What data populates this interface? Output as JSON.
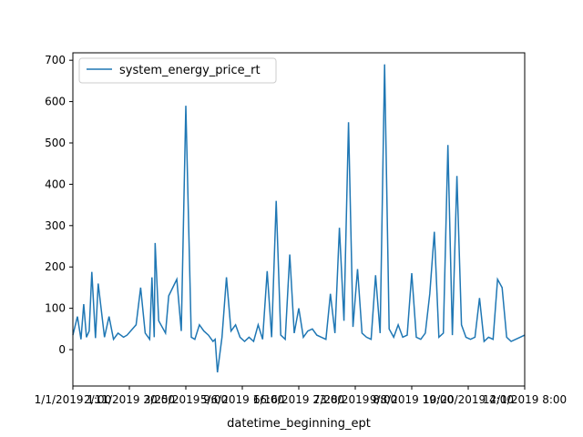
{
  "chart_data": {
    "type": "line",
    "title": "",
    "xlabel": "datetime_beginning_ept",
    "ylabel": "",
    "ylim": [
      -88,
      718
    ],
    "y_ticks": [
      0,
      100,
      200,
      300,
      400,
      500,
      600,
      700
    ],
    "x_tick_labels": [
      "1/1/2019 1:00",
      "2/11/2019 20:00",
      "3/25/2019 9:00",
      "5/6/2019 16:00",
      "6/16/2019 23:00",
      "7/28/2019 8:00",
      "9/8/2019 19:00",
      "10/20/2019 4:00",
      "12/1/2019 8:00"
    ],
    "legend": {
      "position": "upper left"
    },
    "colors": {
      "series": "#1f77b4"
    },
    "series": [
      {
        "name": "system_energy_price_rt",
        "x_range": [
          0,
          1
        ],
        "x": [
          0.0,
          0.01,
          0.018,
          0.024,
          0.03,
          0.036,
          0.042,
          0.05,
          0.056,
          0.07,
          0.08,
          0.09,
          0.1,
          0.112,
          0.12,
          0.14,
          0.15,
          0.16,
          0.17,
          0.175,
          0.18,
          0.182,
          0.19,
          0.205,
          0.212,
          0.23,
          0.24,
          0.25,
          0.262,
          0.27,
          0.28,
          0.29,
          0.3,
          0.31,
          0.315,
          0.32,
          0.33,
          0.34,
          0.35,
          0.36,
          0.37,
          0.38,
          0.39,
          0.4,
          0.41,
          0.42,
          0.43,
          0.44,
          0.45,
          0.46,
          0.47,
          0.48,
          0.49,
          0.5,
          0.51,
          0.52,
          0.53,
          0.54,
          0.55,
          0.56,
          0.57,
          0.58,
          0.59,
          0.6,
          0.61,
          0.62,
          0.63,
          0.64,
          0.65,
          0.66,
          0.67,
          0.68,
          0.69,
          0.7,
          0.71,
          0.72,
          0.73,
          0.74,
          0.75,
          0.76,
          0.77,
          0.78,
          0.79,
          0.8,
          0.81,
          0.82,
          0.83,
          0.84,
          0.85,
          0.86,
          0.87,
          0.88,
          0.89,
          0.9,
          0.91,
          0.92,
          0.93,
          0.94,
          0.95,
          0.96,
          0.97,
          0.98,
          0.99,
          1.0
        ],
        "values": [
          35,
          80,
          25,
          110,
          30,
          45,
          188,
          28,
          160,
          30,
          80,
          25,
          40,
          30,
          35,
          60,
          150,
          40,
          25,
          175,
          30,
          258,
          70,
          40,
          130,
          170,
          45,
          590,
          30,
          25,
          60,
          45,
          35,
          20,
          25,
          -55,
          30,
          175,
          45,
          60,
          30,
          20,
          30,
          20,
          60,
          25,
          190,
          30,
          360,
          35,
          25,
          230,
          40,
          100,
          30,
          45,
          50,
          35,
          30,
          25,
          135,
          40,
          295,
          70,
          550,
          55,
          195,
          40,
          30,
          25,
          180,
          40,
          690,
          50,
          30,
          60,
          30,
          35,
          185,
          30,
          25,
          40,
          135,
          285,
          30,
          40,
          495,
          35,
          420,
          60,
          30,
          25,
          30,
          125,
          20,
          30,
          25,
          170,
          150,
          30,
          20,
          25,
          30,
          35
        ]
      }
    ]
  }
}
